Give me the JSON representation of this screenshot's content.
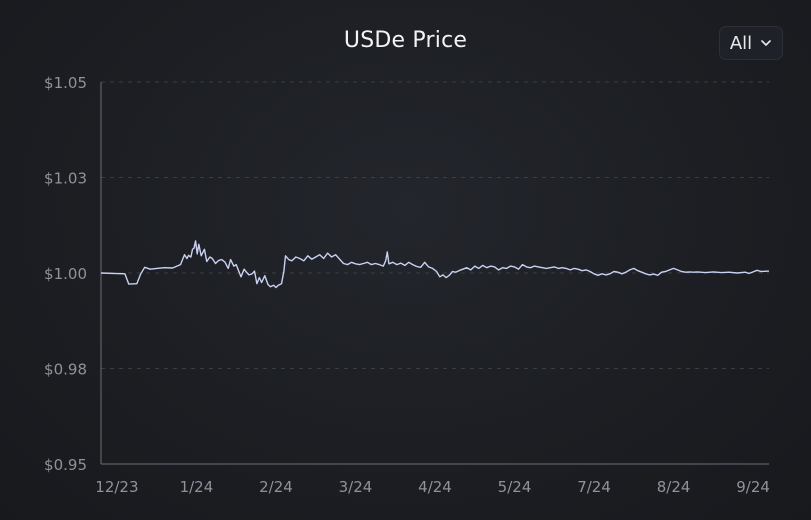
{
  "title": "USDe Price",
  "range_select": {
    "value": "All",
    "icon": "chevron-down-icon"
  },
  "colors": {
    "line": "#c9d2f2",
    "axis": "#6a6e76",
    "grid": "#3a3d44",
    "tick_text": "#8e929b"
  },
  "chart_data": {
    "type": "line",
    "title": "USDe Price",
    "xlabel": "",
    "ylabel": "",
    "y_ticks": [
      {
        "value": 0.95,
        "label": "$0.95"
      },
      {
        "value": 0.975,
        "label": "$0.98"
      },
      {
        "value": 1.0,
        "label": "$1.00"
      },
      {
        "value": 1.025,
        "label": "$1.03"
      },
      {
        "value": 1.05,
        "label": "$1.05"
      }
    ],
    "x_ticks": [
      {
        "value": 0,
        "label": "12/23"
      },
      {
        "value": 1,
        "label": "1/24"
      },
      {
        "value": 2,
        "label": "2/24"
      },
      {
        "value": 3,
        "label": "3/24"
      },
      {
        "value": 4,
        "label": "4/24"
      },
      {
        "value": 5,
        "label": "5/24"
      },
      {
        "value": 6,
        "label": "7/24"
      },
      {
        "value": 7,
        "label": "8/24"
      },
      {
        "value": 8,
        "label": "9/24"
      }
    ],
    "ylim": [
      0.95,
      1.05
    ],
    "xlim": [
      -0.2,
      8.2
    ],
    "grid": "horizontal dashed",
    "series": [
      {
        "points": [
          [
            -0.2,
            1.0
          ],
          [
            0.1,
            0.9998
          ],
          [
            0.15,
            0.9971
          ],
          [
            0.25,
            0.9972
          ],
          [
            0.3,
            0.9998
          ],
          [
            0.35,
            1.0015
          ],
          [
            0.42,
            1.001
          ],
          [
            0.5,
            1.0012
          ],
          [
            0.6,
            1.0014
          ],
          [
            0.7,
            1.0013
          ],
          [
            0.8,
            1.0022
          ],
          [
            0.85,
            1.0048
          ],
          [
            0.88,
            1.0038
          ],
          [
            0.9,
            1.0046
          ],
          [
            0.93,
            1.0042
          ],
          [
            0.95,
            1.0062
          ],
          [
            0.97,
            1.0065
          ],
          [
            0.99,
            1.0084
          ],
          [
            1.01,
            1.005
          ],
          [
            1.03,
            1.0075
          ],
          [
            1.06,
            1.0045
          ],
          [
            1.1,
            1.0062
          ],
          [
            1.13,
            1.003
          ],
          [
            1.17,
            1.0042
          ],
          [
            1.2,
            1.0038
          ],
          [
            1.24,
            1.0025
          ],
          [
            1.28,
            1.0033
          ],
          [
            1.32,
            1.0035
          ],
          [
            1.36,
            1.0028
          ],
          [
            1.4,
            1.0012
          ],
          [
            1.43,
            1.0035
          ],
          [
            1.47,
            1.0018
          ],
          [
            1.5,
            1.0022
          ],
          [
            1.53,
            1.0006
          ],
          [
            1.56,
            0.999
          ],
          [
            1.6,
            1.001
          ],
          [
            1.63,
            1.0002
          ],
          [
            1.66,
            0.9995
          ],
          [
            1.7,
            0.9998
          ],
          [
            1.73,
            1.0005
          ],
          [
            1.76,
            0.9972
          ],
          [
            1.79,
            0.9988
          ],
          [
            1.82,
            0.9975
          ],
          [
            1.86,
            0.9993
          ],
          [
            1.9,
            0.997
          ],
          [
            1.93,
            0.9964
          ],
          [
            1.97,
            0.9968
          ],
          [
            2.0,
            0.9962
          ],
          [
            2.03,
            0.9968
          ],
          [
            2.07,
            0.9972
          ],
          [
            2.1,
            1.0005
          ],
          [
            2.12,
            1.0045
          ],
          [
            2.16,
            1.0035
          ],
          [
            2.2,
            1.0032
          ],
          [
            2.25,
            1.0042
          ],
          [
            2.3,
            1.0038
          ],
          [
            2.35,
            1.0032
          ],
          [
            2.4,
            1.0045
          ],
          [
            2.45,
            1.0036
          ],
          [
            2.5,
            1.0042
          ],
          [
            2.55,
            1.0048
          ],
          [
            2.6,
            1.0038
          ],
          [
            2.65,
            1.0052
          ],
          [
            2.7,
            1.0042
          ],
          [
            2.75,
            1.0048
          ],
          [
            2.8,
            1.0036
          ],
          [
            2.85,
            1.0025
          ],
          [
            2.9,
            1.0022
          ],
          [
            2.95,
            1.0028
          ],
          [
            3.0,
            1.0024
          ],
          [
            3.05,
            1.0022
          ],
          [
            3.1,
            1.0025
          ],
          [
            3.15,
            1.0028
          ],
          [
            3.2,
            1.0022
          ],
          [
            3.25,
            1.0025
          ],
          [
            3.3,
            1.0022
          ],
          [
            3.35,
            1.0018
          ],
          [
            3.38,
            1.0032
          ],
          [
            3.4,
            1.0055
          ],
          [
            3.42,
            1.0024
          ],
          [
            3.47,
            1.0028
          ],
          [
            3.52,
            1.0022
          ],
          [
            3.57,
            1.0026
          ],
          [
            3.62,
            1.002
          ],
          [
            3.67,
            1.0028
          ],
          [
            3.72,
            1.0022
          ],
          [
            3.77,
            1.0017
          ],
          [
            3.82,
            1.0015
          ],
          [
            3.87,
            1.0028
          ],
          [
            3.92,
            1.0016
          ],
          [
            3.97,
            1.0012
          ],
          [
            4.02,
            1.0004
          ],
          [
            4.06,
            0.999
          ],
          [
            4.1,
            0.9995
          ],
          [
            4.14,
            0.9988
          ],
          [
            4.18,
            0.9994
          ],
          [
            4.22,
            1.0004
          ],
          [
            4.26,
            1.0002
          ],
          [
            4.3,
            1.0006
          ],
          [
            4.35,
            1.001
          ],
          [
            4.4,
            1.0014
          ],
          [
            4.45,
            1.0008
          ],
          [
            4.5,
            1.0018
          ],
          [
            4.55,
            1.0012
          ],
          [
            4.6,
            1.002
          ],
          [
            4.65,
            1.0014
          ],
          [
            4.7,
            1.0018
          ],
          [
            4.75,
            1.0016
          ],
          [
            4.8,
            1.0008
          ],
          [
            4.85,
            1.0014
          ],
          [
            4.9,
            1.0012
          ],
          [
            4.95,
            1.0018
          ],
          [
            5.0,
            1.0016
          ],
          [
            5.05,
            1.001
          ],
          [
            5.1,
            1.0022
          ],
          [
            5.15,
            1.0016
          ],
          [
            5.2,
            1.0014
          ],
          [
            5.25,
            1.0018
          ],
          [
            5.3,
            1.0016
          ],
          [
            5.35,
            1.0014
          ],
          [
            5.4,
            1.0012
          ],
          [
            5.45,
            1.0014
          ],
          [
            5.5,
            1.0016
          ],
          [
            5.55,
            1.0012
          ],
          [
            5.6,
            1.0014
          ],
          [
            5.65,
            1.0012
          ],
          [
            5.7,
            1.0008
          ],
          [
            5.75,
            1.0012
          ],
          [
            5.8,
            1.001
          ],
          [
            5.85,
            1.0006
          ],
          [
            5.9,
            1.0008
          ],
          [
            5.95,
            1.0004
          ],
          [
            6.0,
            0.9998
          ],
          [
            6.05,
            0.9994
          ],
          [
            6.1,
            0.9998
          ],
          [
            6.15,
            0.9995
          ],
          [
            6.2,
            0.9998
          ],
          [
            6.25,
            1.0004
          ],
          [
            6.3,
            1.0002
          ],
          [
            6.35,
            0.9998
          ],
          [
            6.4,
            1.0002
          ],
          [
            6.45,
            1.0008
          ],
          [
            6.5,
            1.0012
          ],
          [
            6.55,
            1.0006
          ],
          [
            6.6,
            1.0002
          ],
          [
            6.65,
            0.9998
          ],
          [
            6.7,
            0.9995
          ],
          [
            6.75,
            0.9997
          ],
          [
            6.8,
            0.9994
          ],
          [
            6.85,
            1.0002
          ],
          [
            6.9,
            1.0004
          ],
          [
            6.95,
            1.0008
          ],
          [
            7.0,
            1.0012
          ],
          [
            7.05,
            1.0008
          ],
          [
            7.1,
            1.0004
          ],
          [
            7.15,
            1.0002
          ],
          [
            7.2,
            1.0003
          ],
          [
            7.25,
            1.0002
          ],
          [
            7.3,
            1.0003
          ],
          [
            7.4,
            1.0001
          ],
          [
            7.5,
            1.0003
          ],
          [
            7.6,
            1.0001
          ],
          [
            7.7,
            1.0002
          ],
          [
            7.8,
            1.0
          ],
          [
            7.9,
            1.0002
          ],
          [
            7.95,
            0.9999
          ],
          [
            8.0,
            1.0003
          ],
          [
            8.05,
            1.0007
          ],
          [
            8.1,
            1.0004
          ],
          [
            8.2,
            1.0005
          ]
        ]
      }
    ]
  }
}
